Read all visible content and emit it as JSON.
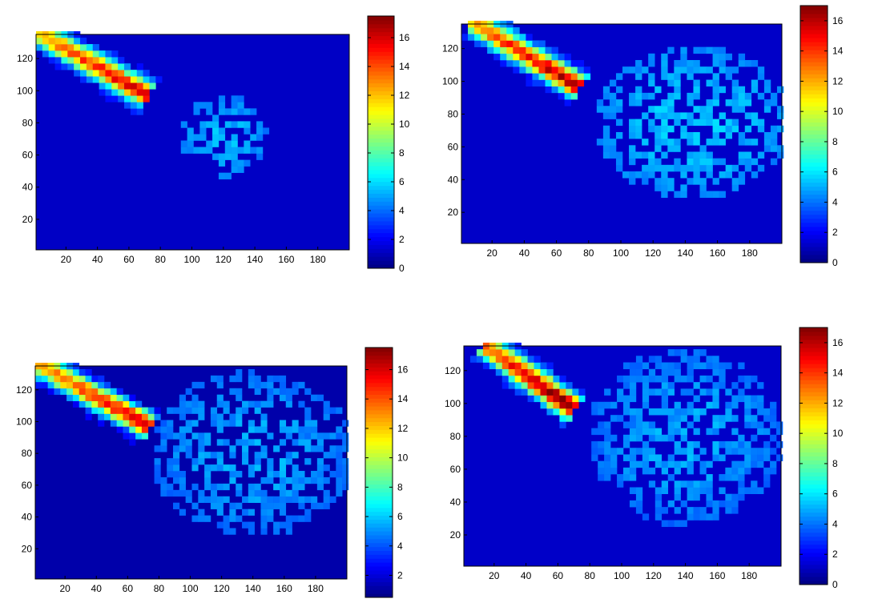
{
  "chart_data": [
    {
      "type": "heatmap",
      "panel": "top-left",
      "xlim": [
        1,
        200
      ],
      "ylim": [
        1,
        135
      ],
      "xticks": [
        20,
        40,
        60,
        80,
        100,
        120,
        140,
        160,
        180
      ],
      "yticks": [
        20,
        40,
        60,
        80,
        100,
        120
      ],
      "colorbar": {
        "cmin": 0,
        "cmax": 17.5,
        "ticks": [
          0,
          2,
          4,
          6,
          8,
          10,
          12,
          14,
          16
        ]
      },
      "jet": {
        "x": [
          5,
          70
        ],
        "y": [
          135,
          98
        ],
        "width": 9,
        "peak": 15.5
      },
      "plume": {
        "cx": 120,
        "cy": 72,
        "rx": 26,
        "ry": 24,
        "level": 3.5
      }
    },
    {
      "type": "heatmap",
      "panel": "top-right",
      "xlim": [
        1,
        200
      ],
      "ylim": [
        1,
        135
      ],
      "xticks": [
        20,
        40,
        60,
        80,
        100,
        120,
        140,
        160,
        180
      ],
      "yticks": [
        20,
        40,
        60,
        80,
        100,
        120
      ],
      "colorbar": {
        "cmin": 0,
        "cmax": 17,
        "ticks": [
          0,
          2,
          4,
          6,
          8,
          10,
          12,
          14,
          16
        ]
      },
      "jet": {
        "x": [
          10,
          72
        ],
        "y": [
          135,
          98
        ],
        "width": 9,
        "peak": 15.5
      },
      "plume": {
        "cx": 145,
        "cy": 75,
        "rx": 58,
        "ry": 44,
        "level": 3.5
      }
    },
    {
      "type": "heatmap",
      "panel": "bottom-left",
      "xlim": [
        1,
        200
      ],
      "ylim": [
        1,
        135
      ],
      "xticks": [
        20,
        40,
        60,
        80,
        100,
        120,
        140,
        160,
        180
      ],
      "yticks": [
        20,
        40,
        60,
        80,
        100,
        120
      ],
      "colorbar": {
        "cmin": 0.5,
        "cmax": 17.5,
        "ticks": [
          2,
          4,
          6,
          8,
          10,
          12,
          14,
          16
        ]
      },
      "jet": {
        "x": [
          5,
          72
        ],
        "y": [
          135,
          98
        ],
        "width": 9,
        "peak": 15.5
      },
      "plume": {
        "cx": 140,
        "cy": 80,
        "rx": 62,
        "ry": 50,
        "level": 3.5
      }
    },
    {
      "type": "heatmap",
      "panel": "bottom-right",
      "xlim": [
        1,
        200
      ],
      "ylim": [
        1,
        135
      ],
      "xticks": [
        20,
        40,
        60,
        80,
        100,
        120,
        140,
        160,
        180
      ],
      "yticks": [
        20,
        40,
        60,
        80,
        100,
        120
      ],
      "colorbar": {
        "cmin": 0,
        "cmax": 17,
        "ticks": [
          0,
          2,
          4,
          6,
          8,
          10,
          12,
          14,
          16
        ]
      },
      "jet": {
        "x": [
          15,
          68
        ],
        "y": [
          135,
          98
        ],
        "width": 9,
        "peak": 16.5
      },
      "plume": {
        "cx": 140,
        "cy": 80,
        "rx": 58,
        "ry": 52,
        "level": 3.0
      }
    }
  ]
}
